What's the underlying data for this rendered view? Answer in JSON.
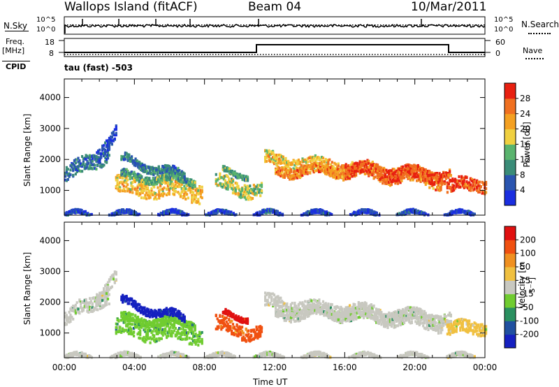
{
  "header": {
    "station": "Wallops Island (fitACF)",
    "beam": "Beam 04",
    "date": "10/Mar/2011"
  },
  "param_panels": {
    "nsky_label": "N.Sky",
    "nsearch_label": "N.Search",
    "freq_label_top": "Freq.",
    "freq_label_bottom": "[MHz]",
    "nave_label": "Nave",
    "cpid_label": "CPID",
    "noise_ticks": [
      "10^5",
      "10^0"
    ],
    "freq_ticks": [
      "18",
      "8"
    ],
    "nave_ticks": [
      "60",
      "0"
    ],
    "cpid_text": "tau (fast) -503"
  },
  "colors": {
    "power_scale": [
      "#1a2ee0",
      "#2a55b0",
      "#3a8c78",
      "#5ab46e",
      "#f0d040",
      "#f4a021",
      "#f07020",
      "#e82010"
    ],
    "velocity_scale": [
      "#1520c0",
      "#2050a0",
      "#2a9060",
      "#70cc30",
      "#c8c8c0",
      "#f0c040",
      "#f09020",
      "#f05010",
      "#e01010"
    ]
  },
  "chart_data": [
    {
      "type": "heatmap",
      "title": "Power",
      "xlabel": "",
      "ylabel": "Slant Range [km]",
      "x_ticks": [
        "00:00",
        "04:00",
        "08:00",
        "12:00",
        "16:00",
        "20:00",
        "00:00"
      ],
      "y_ticks": [
        1000,
        2000,
        3000,
        4000
      ],
      "ylim": [
        200,
        4600
      ],
      "colorbar": {
        "label": "Power [dB]",
        "ticks": [
          "28",
          "24",
          "20",
          "16",
          "12",
          "8",
          "4"
        ],
        "range": [
          0,
          32
        ]
      }
    },
    {
      "type": "heatmap",
      "title": "Velocity",
      "xlabel": "Time UT",
      "ylabel": "Slant Range [km]",
      "x_ticks": [
        "00:00",
        "04:00",
        "08:00",
        "12:00",
        "16:00",
        "20:00",
        "00:00"
      ],
      "y_ticks": [
        1000,
        2000,
        3000,
        4000
      ],
      "ylim": [
        200,
        4600
      ],
      "colorbar": {
        "label": "Velocity [m s⁻¹]",
        "ticks": [
          "200",
          "100",
          "50",
          "15",
          "-15",
          "-50",
          "-100",
          "-200"
        ],
        "range": [
          -250,
          250
        ]
      }
    }
  ]
}
